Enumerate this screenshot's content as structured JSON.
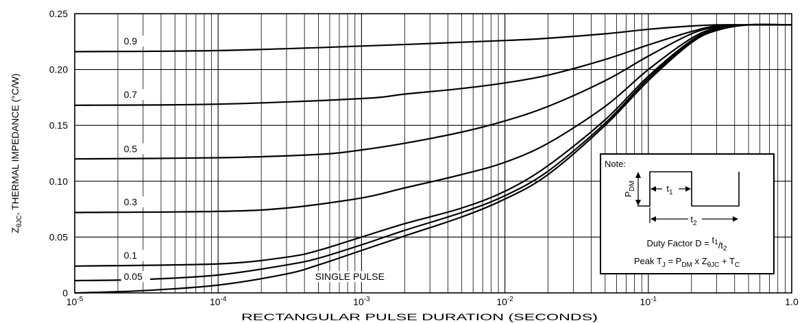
{
  "chart_data": {
    "type": "line",
    "xlabel": "RECTANGULAR PULSE DURATION (SECONDS)",
    "ylabel_parts": {
      "main": "Z",
      "sub": "θJC",
      "rest": ", THERMAL IMPEDANCE (°C/W)"
    },
    "xscale": "log",
    "xlim": [
      1e-05,
      1.0
    ],
    "ylim": [
      0,
      0.25
    ],
    "grid": true,
    "x_ticks": [
      {
        "value": 1e-05,
        "base": "10",
        "exp": "-5"
      },
      {
        "value": 0.0001,
        "base": "10",
        "exp": "-4"
      },
      {
        "value": 0.001,
        "base": "10",
        "exp": "-3"
      },
      {
        "value": 0.01,
        "base": "10",
        "exp": "-2"
      },
      {
        "value": 0.1,
        "base": "10",
        "exp": "-1"
      },
      {
        "value": 1.0,
        "base": "1.0",
        "exp": ""
      }
    ],
    "y_ticks": [
      {
        "value": 0,
        "label": "0"
      },
      {
        "value": 0.05,
        "label": "0.05"
      },
      {
        "value": 0.1,
        "label": "0.10"
      },
      {
        "value": 0.15,
        "label": "0.15"
      },
      {
        "value": 0.2,
        "label": "0.20"
      },
      {
        "value": 0.25,
        "label": "0.25"
      }
    ],
    "series": [
      {
        "name": "0.9",
        "label_at": [
          2.2e-05,
          0.2225
        ],
        "x": [
          1e-05,
          0.0001,
          0.001,
          0.01,
          0.02,
          0.05,
          0.1,
          0.2,
          0.3,
          0.5,
          1.0
        ],
        "y": [
          0.216,
          0.217,
          0.221,
          0.226,
          0.228,
          0.232,
          0.236,
          0.239,
          0.24,
          0.24,
          0.24
        ]
      },
      {
        "name": "0.7",
        "label_at": [
          2.2e-05,
          0.1745
        ],
        "x": [
          1e-05,
          0.0001,
          0.001,
          0.002,
          0.005,
          0.01,
          0.02,
          0.05,
          0.1,
          0.2,
          0.3,
          0.5,
          1.0
        ],
        "y": [
          0.168,
          0.169,
          0.174,
          0.178,
          0.183,
          0.188,
          0.195,
          0.209,
          0.222,
          0.234,
          0.239,
          0.24,
          0.24
        ]
      },
      {
        "name": "0.5",
        "label_at": [
          2.2e-05,
          0.126
        ],
        "x": [
          1e-05,
          0.0001,
          0.0005,
          0.001,
          0.002,
          0.005,
          0.01,
          0.02,
          0.05,
          0.1,
          0.2,
          0.3,
          0.5,
          1.0
        ],
        "y": [
          0.12,
          0.121,
          0.124,
          0.128,
          0.134,
          0.144,
          0.154,
          0.167,
          0.19,
          0.212,
          0.232,
          0.238,
          0.24,
          0.24
        ]
      },
      {
        "name": "0.3",
        "label_at": [
          2.2e-05,
          0.0785
        ],
        "x": [
          1e-05,
          0.0001,
          0.0003,
          0.001,
          0.002,
          0.005,
          0.01,
          0.02,
          0.05,
          0.1,
          0.2,
          0.3,
          0.5,
          1.0
        ],
        "y": [
          0.072,
          0.073,
          0.076,
          0.085,
          0.094,
          0.106,
          0.117,
          0.134,
          0.167,
          0.2,
          0.228,
          0.237,
          0.24,
          0.24
        ]
      },
      {
        "name": "0.1",
        "label_at": [
          2.2e-05,
          0.0305
        ],
        "x": [
          1e-05,
          0.0001,
          0.0003,
          0.0005,
          0.001,
          0.002,
          0.005,
          0.01,
          0.02,
          0.05,
          0.1,
          0.2,
          0.3,
          0.5,
          1.0
        ],
        "y": [
          0.024,
          0.026,
          0.032,
          0.038,
          0.05,
          0.062,
          0.076,
          0.091,
          0.114,
          0.155,
          0.194,
          0.226,
          0.236,
          0.24,
          0.24
        ]
      },
      {
        "name": "0.05",
        "label_at": [
          2.2e-05,
          0.0115
        ],
        "x": [
          1e-05,
          3e-05,
          0.0001,
          0.0003,
          0.0005,
          0.001,
          0.002,
          0.005,
          0.01,
          0.02,
          0.05,
          0.1,
          0.2,
          0.3,
          0.5,
          1.0
        ],
        "y": [
          0.011,
          0.012,
          0.016,
          0.025,
          0.031,
          0.043,
          0.056,
          0.072,
          0.087,
          0.109,
          0.152,
          0.192,
          0.225,
          0.236,
          0.24,
          0.24
        ]
      },
      {
        "name": "SINGLE PULSE",
        "label_at": [
          0.000475,
          0.0115
        ],
        "x": [
          1e-05,
          3e-05,
          0.0001,
          0.0003,
          0.0005,
          0.001,
          0.002,
          0.005,
          0.01,
          0.02,
          0.05,
          0.1,
          0.2,
          0.3,
          0.5,
          1.0
        ],
        "y": [
          0.0,
          0.002,
          0.007,
          0.017,
          0.025,
          0.038,
          0.051,
          0.068,
          0.084,
          0.106,
          0.15,
          0.19,
          0.224,
          0.235,
          0.24,
          0.24
        ]
      }
    ],
    "note": {
      "title": "Note:",
      "pdm_main": "P",
      "pdm_sub": "DM",
      "t1_main": "t",
      "t1_sub": "1",
      "t2_main": "t",
      "t2_sub": "2",
      "duty_prefix": "Duty Factor  D = ",
      "duty_num": "t",
      "duty_num_sub": "1",
      "duty_den": "/t",
      "duty_den_sub": "2",
      "peak_parts": [
        "Peak T",
        "J",
        " = P",
        "DM",
        " x Z",
        "θJC",
        " + T",
        "C"
      ]
    }
  }
}
